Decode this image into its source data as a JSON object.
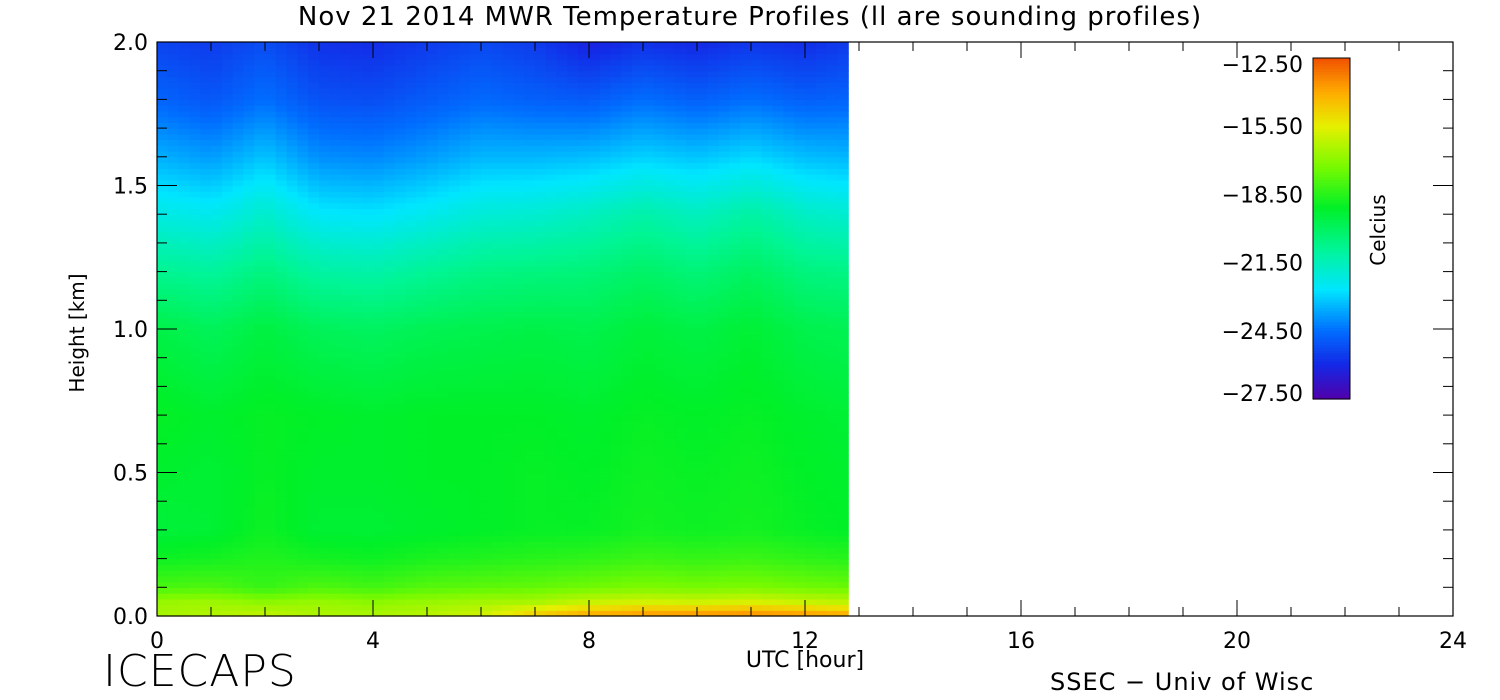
{
  "chart_data": {
    "type": "heatmap",
    "title": "Nov 21 2014 MWR Temperature Profiles (ll are sounding profiles)",
    "xlabel": "UTC [hour]",
    "ylabel": "Height [km]",
    "xlim": [
      0,
      24
    ],
    "ylim": [
      0,
      2
    ],
    "x_ticks": [
      0,
      4,
      8,
      12,
      16,
      20,
      24
    ],
    "x_tick_labels": [
      "0",
      "4",
      "8",
      "12",
      "16",
      "20",
      "24"
    ],
    "y_ticks": [
      0,
      0.5,
      1.0,
      1.5,
      2.0
    ],
    "y_tick_labels": [
      "0.0",
      "0.5",
      "1.0",
      "1.5",
      "2.0"
    ],
    "data_time_range": [
      0,
      12.8
    ],
    "colorbar": {
      "label": "Celcius",
      "ticks": [
        -12.5,
        -15.5,
        -18.5,
        -21.5,
        -24.5,
        -27.5
      ],
      "tick_labels": [
        "−12.50",
        "−15.50",
        "−18.50",
        "−21.50",
        "−24.50",
        "−27.50"
      ],
      "range": [
        -27.5,
        -12.5
      ]
    },
    "profile_heights_km": [
      0,
      0.05,
      0.1,
      0.2,
      0.3,
      0.5,
      0.7,
      1.0,
      1.2,
      1.4,
      1.6,
      1.8,
      2.0
    ],
    "profile_times_hr": [
      0,
      1,
      2,
      3,
      4,
      5,
      6,
      7,
      8,
      9,
      10,
      11,
      12,
      12.8
    ],
    "temperature_C": [
      [
        -16.5,
        -16.8,
        -18.0,
        -18.9,
        -19.4,
        -19.2,
        -19.0,
        -19.6,
        -20.8,
        -22.2,
        -23.5,
        -24.7,
        -25.4
      ],
      [
        -16.3,
        -16.7,
        -17.9,
        -18.8,
        -19.3,
        -19.3,
        -19.2,
        -19.9,
        -21.0,
        -22.4,
        -23.8,
        -25.0,
        -25.6
      ],
      [
        -16.0,
        -17.0,
        -18.3,
        -18.6,
        -18.9,
        -19.0,
        -19.0,
        -19.5,
        -20.5,
        -21.8,
        -23.2,
        -24.5,
        -25.2
      ],
      [
        -16.4,
        -16.8,
        -17.9,
        -18.8,
        -19.3,
        -19.2,
        -19.1,
        -19.9,
        -21.1,
        -22.6,
        -24.0,
        -25.1,
        -25.8
      ],
      [
        -16.4,
        -17.0,
        -18.1,
        -18.9,
        -19.3,
        -19.2,
        -19.2,
        -20.0,
        -21.2,
        -22.7,
        -24.1,
        -25.2,
        -25.9
      ],
      [
        -16.2,
        -16.8,
        -17.8,
        -18.7,
        -19.2,
        -19.1,
        -19.1,
        -19.8,
        -20.9,
        -22.4,
        -23.8,
        -24.9,
        -25.6
      ],
      [
        -15.8,
        -16.6,
        -17.7,
        -18.6,
        -19.1,
        -19.1,
        -19.1,
        -19.7,
        -20.6,
        -22.0,
        -23.4,
        -24.6,
        -25.3
      ],
      [
        -14.5,
        -16.5,
        -17.6,
        -18.5,
        -19.0,
        -19.0,
        -19.1,
        -19.6,
        -20.5,
        -21.9,
        -23.4,
        -24.8,
        -25.6
      ],
      [
        -13.8,
        -16.0,
        -17.4,
        -18.4,
        -19.0,
        -19.1,
        -19.2,
        -19.7,
        -20.4,
        -21.6,
        -23.3,
        -24.9,
        -26.2
      ],
      [
        -13.5,
        -15.8,
        -17.2,
        -18.2,
        -18.8,
        -18.9,
        -19.0,
        -19.4,
        -20.1,
        -21.2,
        -23.0,
        -24.5,
        -25.8
      ],
      [
        -13.4,
        -15.9,
        -17.3,
        -18.3,
        -18.9,
        -19.0,
        -19.1,
        -19.6,
        -20.4,
        -21.6,
        -23.2,
        -24.8,
        -26.0
      ],
      [
        -13.3,
        -15.7,
        -17.2,
        -18.2,
        -18.8,
        -18.9,
        -19.0,
        -19.3,
        -20.0,
        -21.1,
        -22.9,
        -24.5,
        -25.7
      ],
      [
        -13.5,
        -16.0,
        -17.4,
        -18.4,
        -19.0,
        -19.1,
        -19.2,
        -19.7,
        -20.5,
        -21.7,
        -23.3,
        -24.8,
        -25.9
      ],
      [
        -13.8,
        -16.2,
        -17.5,
        -18.5,
        -19.1,
        -19.2,
        -19.3,
        -19.8,
        -20.6,
        -21.9,
        -23.4,
        -24.7,
        -25.6
      ]
    ]
  },
  "footer": {
    "logo": "ICECAPS",
    "credit": "SSEC − Univ of Wisc"
  }
}
